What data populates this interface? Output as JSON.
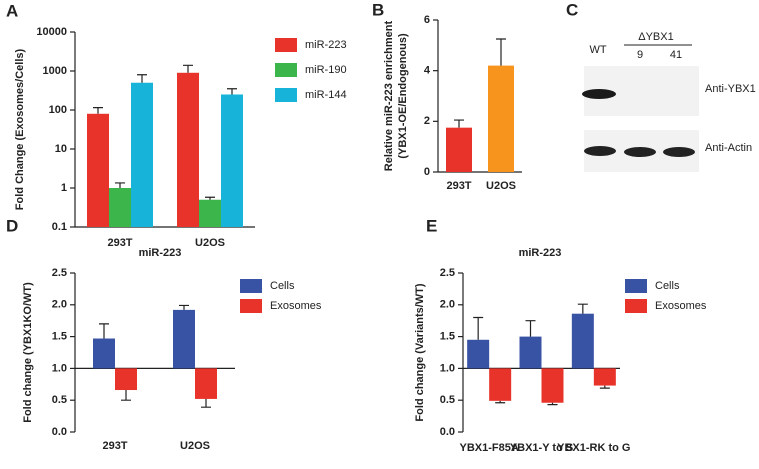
{
  "chart_data": [
    {
      "type": "bar",
      "panel_label": "A",
      "log_scale": true,
      "ylabel": [
        "Fold Change (Exosomes/Cells)"
      ],
      "categories": [
        "293T",
        "U2OS"
      ],
      "ylim": [
        0.1,
        10000
      ],
      "yticks": [
        0.1,
        1,
        10,
        100,
        1000,
        10000
      ],
      "baseline": 0.1,
      "series": [
        {
          "name": "miR-223",
          "color": "#e8332a",
          "values": [
            80,
            900
          ],
          "errors": [
            35,
            500
          ]
        },
        {
          "name": "miR-190",
          "color": "#3cb54a",
          "values": [
            1.0,
            0.5
          ],
          "errors": [
            0.35,
            0.08
          ]
        },
        {
          "name": "miR-144",
          "color": "#17b3d9",
          "values": [
            500,
            250
          ],
          "errors": [
            300,
            100
          ]
        }
      ]
    },
    {
      "type": "bar",
      "panel_label": "B",
      "ylabel": [
        "Relative miR-223 enrichment",
        "(YBX1-OE/Endogenous)"
      ],
      "categories": [
        "293T",
        "U2OS"
      ],
      "ylim": [
        0,
        6
      ],
      "yticks": [
        0,
        2,
        4,
        6
      ],
      "baseline": 0,
      "colors": [
        "#e8332a",
        "#f7941d"
      ],
      "values": [
        1.75,
        4.2
      ],
      "errors": [
        0.3,
        1.05
      ]
    },
    {
      "type": "bar",
      "panel_label": "D",
      "title": "miR-223",
      "ylabel": [
        "Fold change (YBX1KO/WT)"
      ],
      "categories": [
        "293T",
        "U2OS"
      ],
      "ylim": [
        0,
        2.5
      ],
      "baseline": 1,
      "yticks": [
        {
          "value": 0,
          "label": "0.0"
        },
        0.5,
        {
          "value": 1,
          "label": "1.0"
        },
        1.5,
        {
          "value": 2,
          "label": "2.0"
        },
        2.5
      ],
      "series": [
        {
          "name": "Cells",
          "color": "#3953a4",
          "values": [
            1.47,
            1.92
          ],
          "errors": [
            0.23,
            0.07
          ]
        },
        {
          "name": "Exosomes",
          "color": "#e8332a",
          "values": [
            0.66,
            0.52
          ],
          "errors": [
            0.16,
            0.13
          ]
        }
      ]
    },
    {
      "type": "bar",
      "panel_label": "E",
      "title": "miR-223",
      "ylabel": [
        "Fold change (Variants/WT)"
      ],
      "categories": [
        "YBX1-F85A",
        "YBX1-Y to S",
        "YBX1-RK to G"
      ],
      "ylim": [
        0,
        2.5
      ],
      "baseline": 1,
      "yticks": [
        {
          "value": 0,
          "label": "0.0"
        },
        0.5,
        {
          "value": 1,
          "label": "1.0"
        },
        1.5,
        {
          "value": 2,
          "label": "2.0"
        },
        2.5
      ],
      "series": [
        {
          "name": "Cells",
          "color": "#3953a4",
          "values": [
            1.45,
            1.5,
            1.86
          ],
          "errors": [
            0.35,
            0.25,
            0.15
          ]
        },
        {
          "name": "Exosomes",
          "color": "#e8332a",
          "values": [
            0.49,
            0.46,
            0.73
          ],
          "errors": [
            0.03,
            0.03,
            0.04
          ]
        }
      ]
    }
  ],
  "blot": {
    "panel_label": "C",
    "lanes": [
      "WT",
      "9",
      "41"
    ],
    "group": "ΔYBX1",
    "bands": [
      "Anti-YBX1",
      "Anti-Actin"
    ]
  }
}
